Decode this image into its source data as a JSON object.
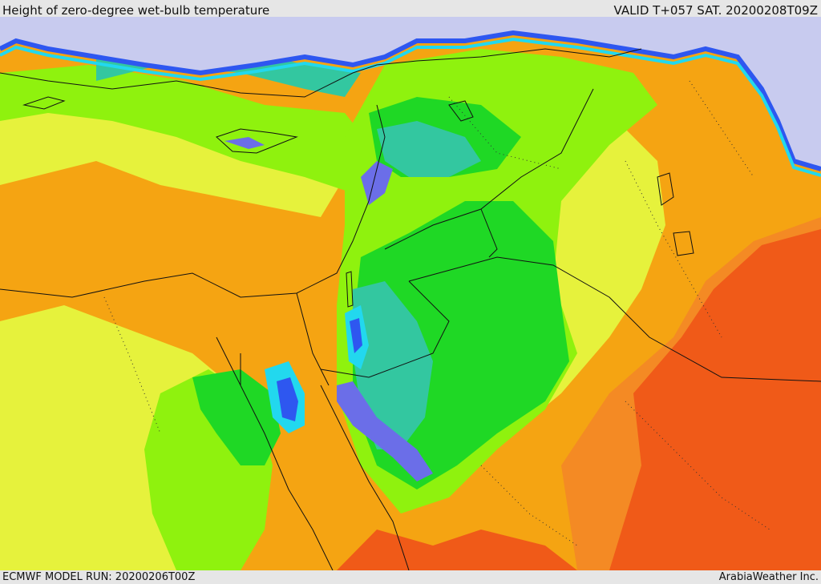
{
  "header": {
    "title": "Height of zero-degree wet-bulb temperature",
    "valid": "VALID T+057 SAT. 20200208T09Z"
  },
  "footer": {
    "model_run": "ECMWF MODEL RUN: 20200206T00Z",
    "credit": "ArabiaWeather Inc."
  },
  "colors": {
    "sea_cold": "#c8cbef",
    "blue_violet": "#6b6ee8",
    "blue": "#2e57f0",
    "cyan": "#22d8ee",
    "teal": "#33c7a0",
    "green": "#1fd825",
    "light_green": "#8ff20e",
    "yellow_green": "#d9f030",
    "yellow": "#e6f23c",
    "orange": "#f5a412",
    "dark_orange": "#f48a24",
    "red_orange": "#f05a18"
  }
}
